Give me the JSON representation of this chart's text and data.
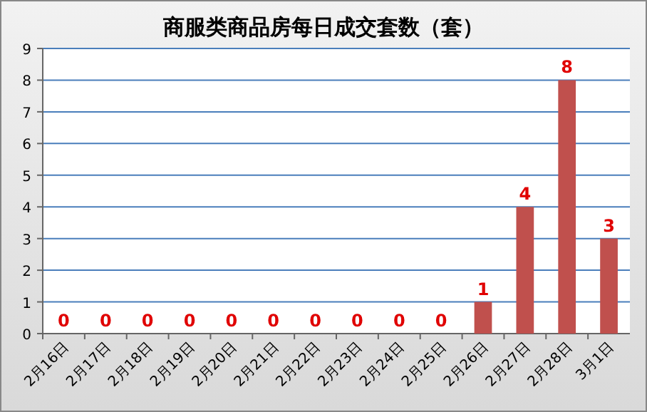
{
  "chart_data": {
    "type": "bar",
    "title": "商服类商品房每日成交套数（套）",
    "categories": [
      "2月16日",
      "2月17日",
      "2月18日",
      "2月19日",
      "2月20日",
      "2月21日",
      "2月22日",
      "2月23日",
      "2月24日",
      "2月25日",
      "2月26日",
      "2月27日",
      "2月28日",
      "3月1日"
    ],
    "values": [
      0,
      0,
      0,
      0,
      0,
      0,
      0,
      0,
      0,
      0,
      1,
      4,
      8,
      3
    ],
    "color": "#c0504d",
    "ylim": [
      0,
      9
    ],
    "yticks": [
      0,
      1,
      2,
      3,
      4,
      5,
      6,
      7,
      8,
      9
    ],
    "grid": "y",
    "data_labels": true
  }
}
